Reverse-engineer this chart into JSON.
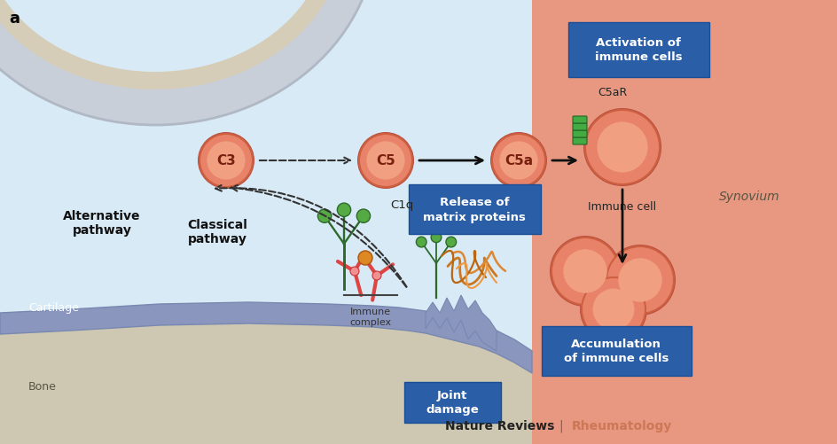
{
  "fig_width": 9.44,
  "fig_height": 5.02,
  "bg_color": "#ffffff",
  "light_blue_bg": "#dce9f5",
  "salmon_bg": "#e8967a",
  "gray_bone_color": "#d4cfc0",
  "cartilage_color": "#8a94bb",
  "cell_outer": "#e8846a",
  "cell_inner": "#f0a080",
  "cell_edge": "#cc6040",
  "label_box_color": "#2a5fa8",
  "title_a": "a",
  "journal_text": "Nature Reviews",
  "journal_sub": "Rheumatology",
  "synovium_text": "Synovium",
  "cartilage_text": "Cartilage",
  "bone_text": "Bone",
  "immune_cell_text": "Immune cell",
  "C5aR_text": "C5aR",
  "C1q_text": "C1q",
  "immune_complex_text": "Immune\ncomplex",
  "alt_pathway_text": "Alternative\npathway",
  "classical_pathway_text": "Classical\npathway",
  "activation_box_text": "Activation of\nimmune cells",
  "release_box_text": "Release of\nmatrix proteins",
  "accumulation_box_text": "Accumulation\nof immune cells",
  "joint_damage_text": "Joint\ndamage"
}
